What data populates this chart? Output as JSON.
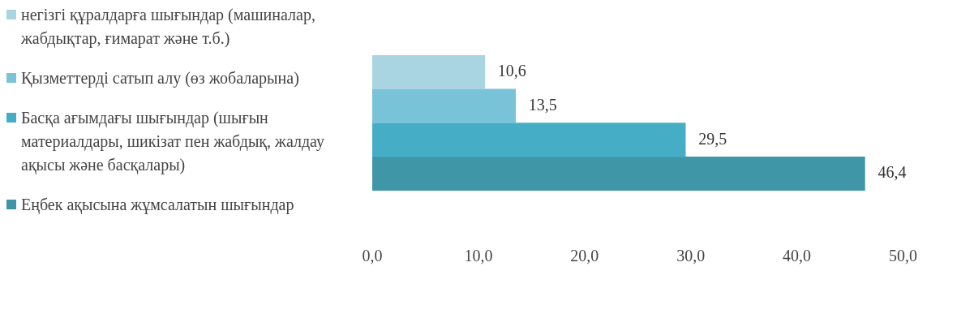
{
  "chart_data": {
    "type": "bar",
    "orientation": "horizontal",
    "categories": [
      null
    ],
    "series": [
      {
        "name": "негізгі құралдарға шығындар (машиналар, жабдықтар, ғимарат және т.б.)",
        "color": "#a9d5e3",
        "values": [
          10.6
        ],
        "value_labels": [
          "10,6"
        ]
      },
      {
        "name": "Қызметтерді сатып алу (өз жобаларына)",
        "color": "#78c3d8",
        "values": [
          13.5
        ],
        "value_labels": [
          "13,5"
        ]
      },
      {
        "name": "Басқа ағымдағы шығындар (шығын материалдары, шикізат пен жабдық, жалдау ақысы және басқалары)",
        "color": "#45aec6",
        "values": [
          29.5
        ],
        "value_labels": [
          "29,5"
        ]
      },
      {
        "name": "Еңбек ақысына жұмсалатын шығындар",
        "color": "#3f96a7",
        "values": [
          46.4
        ],
        "value_labels": [
          "46,4"
        ]
      }
    ],
    "xlim": [
      0,
      50
    ],
    "xticks": [
      {
        "value": 0,
        "label": "0,0"
      },
      {
        "value": 10,
        "label": "10,0"
      },
      {
        "value": 20,
        "label": "20,0"
      },
      {
        "value": 30,
        "label": "30,0"
      },
      {
        "value": 40,
        "label": "40,0"
      },
      {
        "value": 50,
        "label": "50,0"
      }
    ],
    "grid": false,
    "legend": "left"
  }
}
